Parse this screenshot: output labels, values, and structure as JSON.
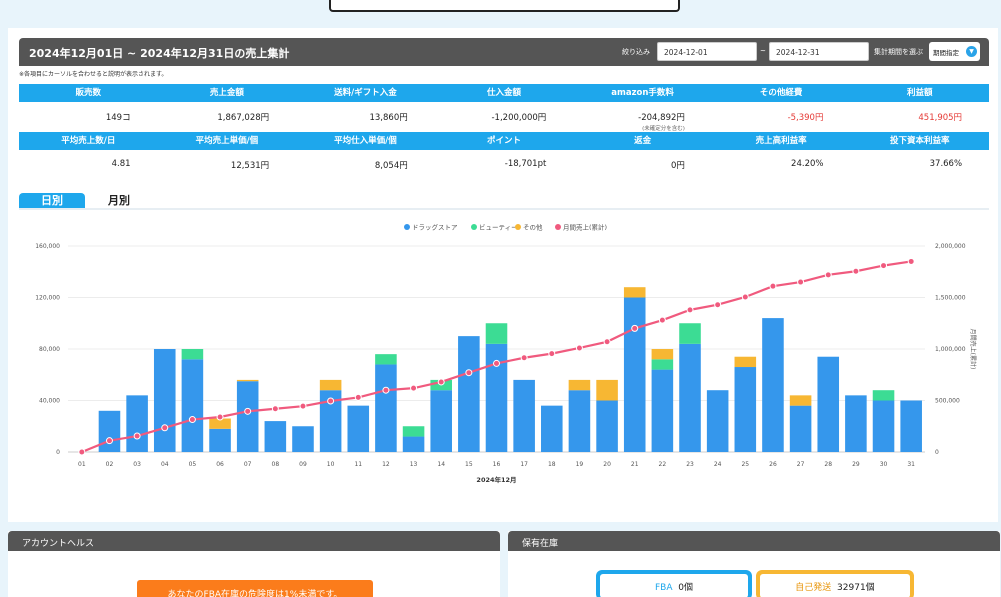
{
  "header": {
    "title": "2024年12月01日 ~ 2024年12月31日の売上集計",
    "filter_label": "絞り込み",
    "date_from": "2024-12-01",
    "date_sep": "~",
    "date_to": "2024-12-31",
    "period_label": "集計期間を選ぶ",
    "period_button": "期間指定"
  },
  "note": "※各項目にカーソルを合わせると説明が表示されます。",
  "stats1": {
    "headers": [
      "販売数",
      "売上金額",
      "送料/ギフト入金",
      "仕入金額",
      "amazon手数料",
      "その他経費",
      "利益額"
    ],
    "values": [
      "149コ",
      "1,867,028円",
      "13,860円",
      "-1,200,000円",
      "-204,892円",
      "-5,390円",
      "451,905円"
    ],
    "amazon_sub": "(未確定分を含む)"
  },
  "stats2": {
    "headers": [
      "平均売上数/日",
      "平均売上単価/個",
      "平均仕入単価/個",
      "ポイント",
      "返金",
      "売上高利益率",
      "投下資本利益率"
    ],
    "values": [
      "4.81",
      "12,531円",
      "8,054円",
      "-18,701pt",
      "0円",
      "24.20%",
      "37.66%"
    ]
  },
  "tabs": {
    "daily": "日別",
    "monthly": "月別"
  },
  "colors": {
    "drug": "#3597ec",
    "beauty": "#3cdc94",
    "other": "#f7b733",
    "cum": "#f05a7e",
    "accent": "#1ea7ec"
  },
  "chart_data": {
    "type": "bar",
    "stacked": true,
    "xlabel": "2024年12月",
    "ylabel_right": "月間売上(累計)",
    "categories": [
      "01",
      "02",
      "03",
      "04",
      "05",
      "06",
      "07",
      "08",
      "09",
      "10",
      "11",
      "12",
      "13",
      "14",
      "15",
      "16",
      "17",
      "18",
      "19",
      "20",
      "21",
      "22",
      "23",
      "24",
      "25",
      "26",
      "27",
      "28",
      "29",
      "30",
      "31"
    ],
    "ylim": [
      0,
      160000
    ],
    "y_ticks": [
      "0",
      "40,000",
      "80,000",
      "120,000",
      "160,000"
    ],
    "y2lim": [
      0,
      2000000
    ],
    "y2_ticks": [
      "0",
      "500,000",
      "1,000,000",
      "1,500,000",
      "2,000,000"
    ],
    "legend": [
      "ドラッグストア",
      "ビューティー",
      "その他",
      "月間売上(累計)"
    ],
    "series": [
      {
        "name": "ドラッグストア",
        "values": [
          0,
          32000,
          44000,
          80000,
          72000,
          18000,
          55000,
          24000,
          20000,
          48000,
          36000,
          68000,
          12000,
          48000,
          90000,
          84000,
          56000,
          36000,
          48000,
          40000,
          120000,
          64000,
          84000,
          48000,
          66000,
          104000,
          36000,
          74000,
          44000,
          40000,
          40000
        ]
      },
      {
        "name": "ビューティー",
        "values": [
          0,
          0,
          0,
          0,
          8000,
          0,
          0,
          0,
          0,
          0,
          0,
          8000,
          8000,
          8000,
          0,
          16000,
          0,
          0,
          0,
          0,
          0,
          8000,
          16000,
          0,
          0,
          0,
          0,
          0,
          0,
          8000,
          0
        ]
      },
      {
        "name": "その他",
        "values": [
          0,
          0,
          0,
          0,
          0,
          8000,
          1000,
          0,
          0,
          8000,
          0,
          0,
          0,
          0,
          0,
          0,
          0,
          0,
          8000,
          16000,
          8000,
          8000,
          0,
          0,
          8000,
          0,
          8000,
          0,
          0,
          0,
          0
        ]
      },
      {
        "name": "月間売上(累計)",
        "axis": "right",
        "values": [
          0,
          110000,
          155000,
          235000,
          315000,
          340000,
          395000,
          420000,
          445000,
          495000,
          530000,
          600000,
          620000,
          680000,
          770000,
          860000,
          915000,
          955000,
          1010000,
          1070000,
          1200000,
          1280000,
          1380000,
          1430000,
          1505000,
          1610000,
          1650000,
          1720000,
          1755000,
          1810000,
          1850000
        ]
      }
    ]
  },
  "bottom": {
    "account_title": "アカウントヘルス",
    "stock_title": "保有在庫",
    "warn_text": "あなたのFBA在庫の危険度は1%未満です。",
    "fba_label": "FBA",
    "fba_value": "0個",
    "self_label": "自己発送",
    "self_value": "32971個"
  }
}
